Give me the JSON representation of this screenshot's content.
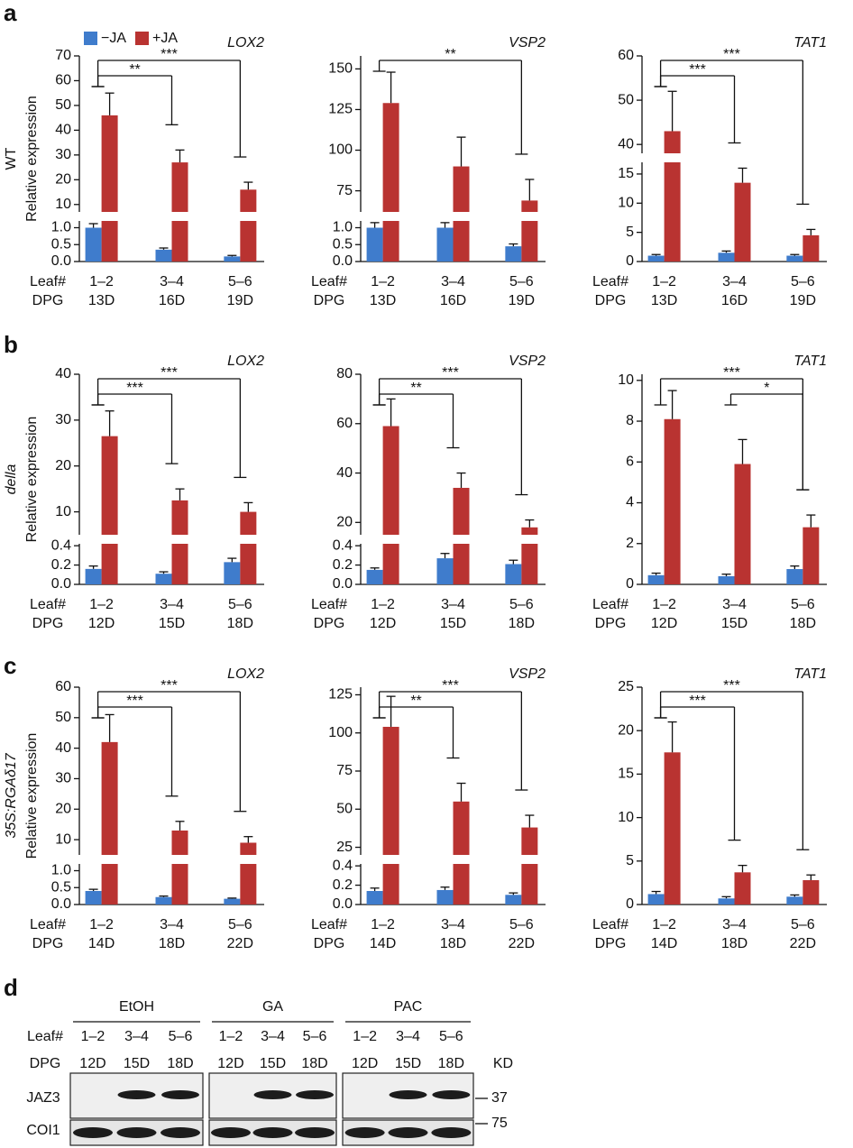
{
  "panel_labels": [
    "a",
    "b",
    "c",
    "d"
  ],
  "legend": [
    {
      "name": "−JA",
      "color": "#3f7ccc"
    },
    {
      "name": "+JA",
      "color": "#b93331"
    }
  ],
  "x_row_labels": [
    "Leaf#",
    "DPG"
  ],
  "rows": [
    {
      "label": "WT",
      "ylabel": "Relative expression"
    },
    {
      "label": "della",
      "ylabel": "Relative expression"
    },
    {
      "label": "35S:RGAδ17",
      "ylabel": "Relative expression"
    }
  ],
  "chart_data": [
    {
      "type": "bar",
      "title": "LOX2",
      "categories": [
        "1–2",
        "3–4",
        "5–6"
      ],
      "dpg": [
        "13D",
        "16D",
        "19D"
      ],
      "segments": [
        {
          "ylim": [
            0,
            1.2
          ],
          "yticks": [
            {
              "value": 0,
              "label": "0.0"
            },
            0.5,
            {
              "value": 1,
              "label": "1.0"
            }
          ]
        },
        {
          "ylim": [
            7,
            70
          ],
          "yticks": [
            10,
            20,
            30,
            40,
            50,
            60,
            70
          ]
        }
      ],
      "series": [
        {
          "values": [
            1.0,
            0.35,
            0.15
          ],
          "errors": [
            0.12,
            0.05,
            0.03
          ]
        },
        {
          "values": [
            46,
            27,
            16
          ],
          "errors": [
            9,
            5,
            3
          ]
        }
      ],
      "significance": [
        {
          "from": 0,
          "to": 1,
          "label": "**"
        },
        {
          "from": 0,
          "to": 2,
          "label": "***"
        }
      ]
    },
    {
      "type": "bar",
      "title": "VSP2",
      "categories": [
        "1–2",
        "3–4",
        "5–6"
      ],
      "dpg": [
        "13D",
        "16D",
        "19D"
      ],
      "segments": [
        {
          "ylim": [
            0,
            1.2
          ],
          "yticks": [
            {
              "value": 0,
              "label": "0.0"
            },
            0.5,
            {
              "value": 1,
              "label": "1.0"
            }
          ]
        },
        {
          "ylim": [
            62,
            158
          ],
          "yticks": [
            75,
            100,
            125,
            150
          ]
        }
      ],
      "series": [
        {
          "values": [
            1.0,
            1.0,
            0.45
          ],
          "errors": [
            0.15,
            0.15,
            0.07
          ]
        },
        {
          "values": [
            129,
            90,
            69
          ],
          "errors": [
            19,
            18,
            13
          ]
        }
      ],
      "significance": [
        {
          "from": 0,
          "to": 2,
          "label": "**"
        }
      ]
    },
    {
      "type": "bar",
      "title": "TAT1",
      "categories": [
        "1–2",
        "3–4",
        "5–6"
      ],
      "dpg": [
        "13D",
        "16D",
        "19D"
      ],
      "segments": [
        {
          "ylim": [
            0,
            17
          ],
          "yticks": [
            0,
            5,
            10,
            15
          ]
        },
        {
          "ylim": [
            38,
            60
          ],
          "yticks": [
            40,
            50,
            60
          ]
        }
      ],
      "series": [
        {
          "values": [
            1.0,
            1.5,
            1.0
          ],
          "errors": [
            0.2,
            0.3,
            0.2
          ]
        },
        {
          "values": [
            43,
            13.5,
            4.5
          ],
          "errors": [
            9,
            2.5,
            1
          ]
        }
      ],
      "significance": [
        {
          "from": 0,
          "to": 1,
          "label": "***"
        },
        {
          "from": 0,
          "to": 2,
          "label": "***"
        }
      ]
    },
    {
      "type": "bar",
      "title": "LOX2",
      "categories": [
        "1–2",
        "3–4",
        "5–6"
      ],
      "dpg": [
        "12D",
        "15D",
        "18D"
      ],
      "segments": [
        {
          "ylim": [
            0,
            0.42
          ],
          "yticks": [
            {
              "value": 0,
              "label": "0.0"
            },
            0.2,
            0.4
          ]
        },
        {
          "ylim": [
            5,
            40
          ],
          "yticks": [
            10,
            20,
            30,
            40
          ]
        }
      ],
      "series": [
        {
          "values": [
            0.16,
            0.11,
            0.23
          ],
          "errors": [
            0.03,
            0.02,
            0.04
          ]
        },
        {
          "values": [
            26.5,
            12.5,
            10
          ],
          "errors": [
            5.5,
            2.5,
            2
          ]
        }
      ],
      "significance": [
        {
          "from": 0,
          "to": 1,
          "label": "***"
        },
        {
          "from": 0,
          "to": 2,
          "label": "***"
        }
      ]
    },
    {
      "type": "bar",
      "title": "VSP2",
      "categories": [
        "1–2",
        "3–4",
        "5–6"
      ],
      "dpg": [
        "12D",
        "15D",
        "18D"
      ],
      "segments": [
        {
          "ylim": [
            0,
            0.42
          ],
          "yticks": [
            {
              "value": 0,
              "label": "0.0"
            },
            0.2,
            0.4
          ]
        },
        {
          "ylim": [
            15,
            80
          ],
          "yticks": [
            20,
            40,
            60,
            80
          ]
        }
      ],
      "series": [
        {
          "values": [
            0.15,
            0.27,
            0.21
          ],
          "errors": [
            0.02,
            0.05,
            0.04
          ]
        },
        {
          "values": [
            59,
            34,
            18
          ],
          "errors": [
            11,
            6,
            3
          ]
        }
      ],
      "significance": [
        {
          "from": 0,
          "to": 1,
          "label": "**"
        },
        {
          "from": 0,
          "to": 2,
          "label": "***"
        }
      ]
    },
    {
      "type": "bar",
      "title": "TAT1",
      "categories": [
        "1–2",
        "3–4",
        "5–6"
      ],
      "dpg": [
        "12D",
        "15D",
        "18D"
      ],
      "segments": [
        {
          "ylim": [
            0,
            10.3
          ],
          "yticks": [
            0,
            2,
            4,
            6,
            8,
            10
          ]
        }
      ],
      "series": [
        {
          "values": [
            0.45,
            0.4,
            0.75
          ],
          "errors": [
            0.1,
            0.1,
            0.15
          ]
        },
        {
          "values": [
            8.1,
            5.9,
            2.8
          ],
          "errors": [
            1.4,
            1.2,
            0.6
          ]
        }
      ],
      "significance": [
        {
          "from": 0,
          "to": 2,
          "label": "***"
        },
        {
          "from": 1,
          "to": 2,
          "label": "*"
        }
      ]
    },
    {
      "type": "bar",
      "title": "LOX2",
      "categories": [
        "1–2",
        "3–4",
        "5–6"
      ],
      "dpg": [
        "14D",
        "18D",
        "22D"
      ],
      "segments": [
        {
          "ylim": [
            0,
            1.2
          ],
          "yticks": [
            {
              "value": 0,
              "label": "0.0"
            },
            0.5,
            {
              "value": 1,
              "label": "1.0"
            }
          ]
        },
        {
          "ylim": [
            5,
            60
          ],
          "yticks": [
            10,
            20,
            30,
            40,
            50,
            60
          ]
        }
      ],
      "series": [
        {
          "values": [
            0.4,
            0.22,
            0.17
          ],
          "errors": [
            0.05,
            0.03,
            0.02
          ]
        },
        {
          "values": [
            42,
            13,
            9
          ],
          "errors": [
            9,
            3,
            2
          ]
        }
      ],
      "significance": [
        {
          "from": 0,
          "to": 1,
          "label": "***"
        },
        {
          "from": 0,
          "to": 2,
          "label": "***"
        }
      ]
    },
    {
      "type": "bar",
      "title": "VSP2",
      "categories": [
        "1–2",
        "3–4",
        "5–6"
      ],
      "dpg": [
        "14D",
        "18D",
        "22D"
      ],
      "segments": [
        {
          "ylim": [
            0,
            0.42
          ],
          "yticks": [
            {
              "value": 0,
              "label": "0.0"
            },
            0.2,
            0.4
          ]
        },
        {
          "ylim": [
            20,
            130
          ],
          "yticks": [
            25,
            50,
            75,
            100,
            125
          ]
        }
      ],
      "series": [
        {
          "values": [
            0.14,
            0.15,
            0.1
          ],
          "errors": [
            0.03,
            0.03,
            0.02
          ]
        },
        {
          "values": [
            104,
            55,
            38
          ],
          "errors": [
            20,
            12,
            8
          ]
        }
      ],
      "significance": [
        {
          "from": 0,
          "to": 1,
          "label": "**"
        },
        {
          "from": 0,
          "to": 2,
          "label": "***"
        }
      ]
    },
    {
      "type": "bar",
      "title": "TAT1",
      "categories": [
        "1–2",
        "3–4",
        "5–6"
      ],
      "dpg": [
        "14D",
        "18D",
        "22D"
      ],
      "segments": [
        {
          "ylim": [
            0,
            25
          ],
          "yticks": [
            0,
            5,
            10,
            15,
            20,
            25
          ]
        }
      ],
      "series": [
        {
          "values": [
            1.2,
            0.7,
            0.9
          ],
          "errors": [
            0.3,
            0.2,
            0.2
          ]
        },
        {
          "values": [
            17.5,
            3.7,
            2.8
          ],
          "errors": [
            3.5,
            0.8,
            0.6
          ]
        }
      ],
      "significance": [
        {
          "from": 0,
          "to": 1,
          "label": "***"
        },
        {
          "from": 0,
          "to": 2,
          "label": "***"
        }
      ]
    }
  ],
  "blot": {
    "groups": [
      "EtOH",
      "GA",
      "PAC"
    ],
    "leaf": [
      "1–2",
      "3–4",
      "5–6"
    ],
    "dpg": [
      "12D",
      "15D",
      "18D"
    ],
    "unit": "KD",
    "bands": [
      "JAZ3",
      "COI1"
    ],
    "markers": [
      "37",
      "75"
    ]
  }
}
